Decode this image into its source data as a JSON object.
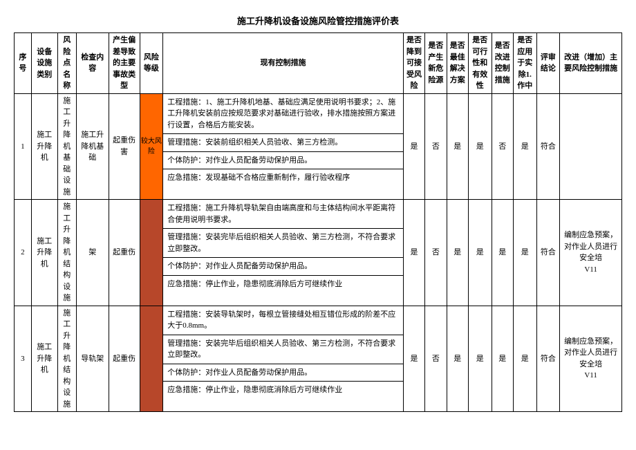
{
  "title": "施工升降机设备设施风险管控措施评价表",
  "headers": {
    "seq": "序号",
    "equip_cat": "设备设施类别",
    "risk_point": "风险点名称",
    "check_content": "检查内容",
    "accident_type": "产生偏差导致的主要事故类型",
    "risk_level": "风险等级",
    "measures": "现有控制措施",
    "q_acceptable": "是否降到可接受风险",
    "q_newhazard": "是否产生新危险源",
    "q_bestsol": "是否最佳解决方案",
    "q_feasible": "是否可行性和有效性",
    "q_improve": "是否改进控制措施",
    "q_applied": "是否应用于实除1.作中",
    "conclusion": "评审结论",
    "improvement": "改进（增加）主要风险控制措施"
  },
  "risk_levels": {
    "major": {
      "label": "较大风险",
      "bg": "#ff6600"
    },
    "other": {
      "label": "",
      "bg": "#b7472a"
    }
  },
  "rows": [
    {
      "seq": "1",
      "equip_cat": "施工升降机",
      "risk_point": "施工升降机基础设施",
      "check_content": "施工升降机基础",
      "accident_type": "起重伤害",
      "risk_level_key": "major",
      "measures": [
        "工程措施：1、施工升降机地基、基础应满足使用说明书要求；2、施工升降机安装前应按规范要求对基础进行验收，排水措施按照方案进行设置，合格后方能安装。",
        "管理措施：安装前组织相关人员验收、第三方检测。",
        "个体防护：对作业人员配备劳动保护用品。",
        "应急措施：发现基础不合格应重新制作，履行验收程序"
      ],
      "q": [
        "是",
        "否",
        "是",
        "是",
        "否",
        "是"
      ],
      "conclusion": "符合",
      "improvement": ""
    },
    {
      "seq": "2",
      "equip_cat": "施工升降机",
      "risk_point": "施工升降机结构设施",
      "check_content": "架",
      "accident_type": "起重伤",
      "risk_level_key": "other",
      "measures": [
        "工程措施：施工升降机导轨架自由端高度和与主体结构间水平距离符合使用说明书要求。",
        "管理措施：安装完毕后组织相关人员验收、第三方检测，不符合要求立即整改。",
        "个体防护：对作业人员配备劳动保护用品。",
        "应急措施：停止作业，隐患彻底消除后方可继续作业"
      ],
      "q": [
        "是",
        "否",
        "是",
        "是",
        "是",
        "是"
      ],
      "conclusion": "符合",
      "improvement": "编制应急预案，对作业人员进行安全培\nV11"
    },
    {
      "seq": "3",
      "equip_cat": "施工升降机",
      "risk_point": "施工升降机结构设施",
      "check_content": "导轨架",
      "accident_type": "起重伤",
      "risk_level_key": "other",
      "measures": [
        "工程措施：安装导轨架时，每根立管接缝处相互错位形成的阶差不应大于0.8mm。",
        "管理措施：安装完毕后组织相关人员验收、第三方检测，不符合要求立即整改。",
        "个体防护：对作业人员配备劳动保护用品。",
        "应急措施：停止作业，隐患彻底消除后方可继续作业"
      ],
      "q": [
        "是",
        "否",
        "是",
        "是",
        "是",
        "是"
      ],
      "conclusion": "符合",
      "improvement": "编制应急预案，对作业人员进行安全培\nV11"
    }
  ]
}
